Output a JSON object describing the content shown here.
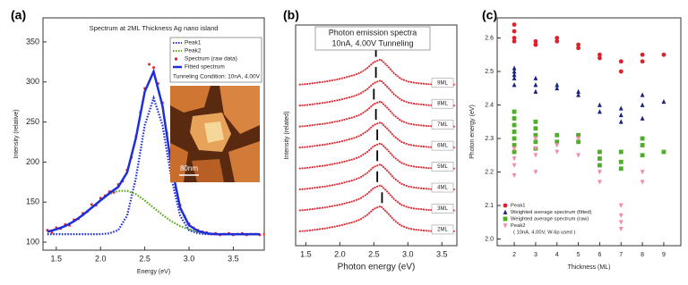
{
  "chart_data": [
    {
      "type": "line",
      "panel_label": "(a)",
      "title": "Spectrum at 2ML Thickness Ag nano island",
      "xlabel": "Energy (eV)",
      "ylabel": "Intensity (relative)",
      "xlim": [
        1.35,
        3.85
      ],
      "ylim": [
        90,
        380
      ],
      "xticks": [
        1.5,
        {
          "value": 2,
          "label": "2.0"
        },
        2.5,
        {
          "value": 3,
          "label": "3.0"
        },
        3.5
      ],
      "yticks": [
        100,
        150,
        200,
        250,
        300,
        350
      ],
      "annotation": "Tunneling Condition: 10nA, 4.00V",
      "inset_label": "80nm",
      "series": [
        {
          "name": "Peak1",
          "color": "#1f2fd8",
          "line_style": "dotted",
          "x": [
            1.4,
            1.5,
            1.6,
            1.7,
            1.8,
            1.9,
            2.0,
            2.1,
            2.2,
            2.3,
            2.4,
            2.5,
            2.6,
            2.7,
            2.8,
            2.9,
            3.0,
            3.1,
            3.2,
            3.3,
            3.4,
            3.5,
            3.6,
            3.7,
            3.8
          ],
          "values": [
            110,
            110,
            110,
            110,
            110,
            110,
            110,
            111,
            115,
            133,
            180,
            246,
            280,
            246,
            180,
            133,
            115,
            111,
            110,
            110,
            110,
            110,
            110,
            110,
            110
          ]
        },
        {
          "name": "Peak2",
          "color": "#5aa81e",
          "line_style": "dotted",
          "x": [
            1.4,
            1.5,
            1.6,
            1.7,
            1.8,
            1.9,
            2.0,
            2.1,
            2.2,
            2.3,
            2.4,
            2.5,
            2.6,
            2.7,
            2.8,
            2.9,
            3.0,
            3.1,
            3.2,
            3.3,
            3.4,
            3.5,
            3.6,
            3.7,
            3.8
          ],
          "values": [
            113,
            116,
            120,
            126,
            134,
            143,
            152,
            160,
            164,
            164,
            160,
            152,
            143,
            134,
            126,
            120,
            116,
            113,
            111,
            110,
            110,
            110,
            110,
            110,
            110
          ]
        },
        {
          "name": "Spectrum (raw data)",
          "color": "#e0202a",
          "line_style": "markers",
          "x": [
            1.4,
            1.45,
            1.5,
            1.55,
            1.6,
            1.65,
            1.7,
            1.75,
            1.8,
            1.85,
            1.9,
            1.95,
            2.0,
            2.05,
            2.1,
            2.15,
            2.2,
            2.25,
            2.3,
            2.35,
            2.4,
            2.45,
            2.5,
            2.55,
            2.6,
            2.65,
            2.7,
            2.75,
            2.8,
            2.85,
            2.9,
            2.95,
            3.0,
            3.05,
            3.1,
            3.15,
            3.2,
            3.25,
            3.3,
            3.35,
            3.4,
            3.45,
            3.5,
            3.55,
            3.6,
            3.65,
            3.7,
            3.75,
            3.8,
            3.85
          ],
          "values": [
            115,
            112,
            118,
            117,
            122,
            121,
            128,
            129,
            136,
            138,
            147,
            146,
            155,
            158,
            163,
            162,
            172,
            176,
            190,
            206,
            232,
            262,
            292,
            322,
            318,
            298,
            274,
            236,
            198,
            168,
            146,
            132,
            123,
            118,
            115,
            113,
            112,
            110,
            111,
            109,
            110,
            111,
            109,
            110,
            111,
            109,
            110,
            110,
            109,
            110
          ]
        },
        {
          "name": "Fitted spectrum",
          "color": "#1f2fd8",
          "line_style": "solid",
          "x": [
            1.4,
            1.5,
            1.6,
            1.7,
            1.8,
            1.9,
            2.0,
            2.1,
            2.2,
            2.3,
            2.4,
            2.5,
            2.6,
            2.7,
            2.8,
            2.9,
            3.0,
            3.1,
            3.2,
            3.3,
            3.4,
            3.5,
            3.6,
            3.7,
            3.8
          ],
          "values": [
            113,
            116,
            120,
            126,
            134,
            143,
            152,
            161,
            169,
            187,
            230,
            288,
            313,
            270,
            196,
            143,
            121,
            114,
            111,
            110,
            110,
            110,
            110,
            110,
            110
          ]
        }
      ]
    },
    {
      "type": "line",
      "panel_label": "(b)",
      "title": "Photon emission spectra",
      "subtitle": "10nA, 4.00V Tunneling",
      "xlabel": "Photon energy (eV)",
      "ylabel": "Intensity (related)",
      "xlim": [
        1.35,
        3.72
      ],
      "ylim": [
        0,
        10
      ],
      "xticks": [
        1.5,
        {
          "value": 2,
          "label": "2.0"
        },
        2.5,
        {
          "value": 3,
          "label": "3.0"
        },
        3.5
      ],
      "x": [
        1.4,
        1.5,
        1.6,
        1.7,
        1.8,
        1.9,
        2.0,
        2.1,
        2.2,
        2.3,
        2.4,
        2.5,
        2.6,
        2.7,
        2.8,
        2.9,
        3.0,
        3.1,
        3.2,
        3.3,
        3.4,
        3.5,
        3.6,
        3.7
      ],
      "series": [
        {
          "name": "9ML",
          "color": "#e0202a",
          "marker": 2.53,
          "values": [
            7.3,
            7.32,
            7.36,
            7.4,
            7.44,
            7.5,
            7.56,
            7.64,
            7.72,
            7.84,
            8.04,
            8.32,
            8.44,
            8.14,
            7.8,
            7.56,
            7.44,
            7.38,
            7.35,
            7.32,
            7.31,
            7.3,
            7.3,
            7.3
          ]
        },
        {
          "name": "8ML",
          "color": "#e0202a",
          "marker": 2.53,
          "values": [
            6.35,
            6.37,
            6.41,
            6.45,
            6.49,
            6.55,
            6.61,
            6.69,
            6.77,
            6.89,
            7.09,
            7.37,
            7.49,
            7.19,
            6.85,
            6.61,
            6.49,
            6.43,
            6.4,
            6.37,
            6.36,
            6.35,
            6.35,
            6.35
          ]
        },
        {
          "name": "7ML",
          "color": "#e0202a",
          "marker": 2.5,
          "values": [
            5.4,
            5.42,
            5.46,
            5.5,
            5.54,
            5.6,
            5.66,
            5.74,
            5.82,
            5.94,
            6.14,
            6.42,
            6.54,
            6.24,
            5.9,
            5.66,
            5.54,
            5.48,
            5.45,
            5.42,
            5.41,
            5.4,
            5.4,
            5.4
          ]
        },
        {
          "name": "6ML",
          "color": "#e0202a",
          "marker": 2.53,
          "values": [
            4.45,
            4.47,
            4.51,
            4.55,
            4.59,
            4.65,
            4.71,
            4.79,
            4.87,
            4.99,
            5.19,
            5.47,
            5.59,
            5.29,
            4.95,
            4.71,
            4.59,
            4.53,
            4.5,
            4.47,
            4.46,
            4.45,
            4.45,
            4.45
          ]
        },
        {
          "name": "5ML",
          "color": "#e0202a",
          "marker": 2.55,
          "values": [
            3.5,
            3.52,
            3.56,
            3.6,
            3.64,
            3.7,
            3.76,
            3.84,
            3.92,
            4.04,
            4.24,
            4.52,
            4.64,
            4.34,
            4,
            3.76,
            3.64,
            3.58,
            3.55,
            3.52,
            3.51,
            3.5,
            3.5,
            3.5
          ]
        },
        {
          "name": "4ML",
          "color": "#e0202a",
          "marker": 2.55,
          "values": [
            2.55,
            2.57,
            2.61,
            2.65,
            2.69,
            2.75,
            2.81,
            2.89,
            2.97,
            3.09,
            3.29,
            3.57,
            3.69,
            3.39,
            3.05,
            2.81,
            2.69,
            2.63,
            2.6,
            2.57,
            2.56,
            2.55,
            2.55,
            2.55
          ]
        },
        {
          "name": "3ML",
          "color": "#e0202a",
          "marker": 2.55,
          "values": [
            1.6,
            1.62,
            1.66,
            1.7,
            1.74,
            1.8,
            1.86,
            1.94,
            2.02,
            2.14,
            2.34,
            2.62,
            2.74,
            2.44,
            2.1,
            1.86,
            1.74,
            1.68,
            1.65,
            1.62,
            1.61,
            1.6,
            1.6,
            1.6
          ]
        },
        {
          "name": "2ML",
          "color": "#e0202a",
          "marker": 2.62,
          "values": [
            0.65,
            0.67,
            0.71,
            0.75,
            0.79,
            0.85,
            0.91,
            0.99,
            1.07,
            1.19,
            1.39,
            1.67,
            1.79,
            1.49,
            1.15,
            0.91,
            0.79,
            0.73,
            0.7,
            0.67,
            0.66,
            0.65,
            0.65,
            0.65
          ]
        }
      ]
    },
    {
      "type": "scatter",
      "panel_label": "(c)",
      "xlabel": "Thickness (ML)",
      "ylabel": "Photon energy (eV)",
      "xlim": [
        1.2,
        9.8
      ],
      "ylim": [
        1.98,
        2.66
      ],
      "xticks": [
        2,
        3,
        4,
        5,
        6,
        7,
        8,
        9
      ],
      "yticks": [
        {
          "value": 2,
          "label": "2.0"
        },
        2.1,
        2.2,
        2.3,
        2.4,
        2.5,
        2.6
      ],
      "legend_note": "( 10nA, 4.00V, W-tip used )",
      "series": [
        {
          "name": "Peak1",
          "color": "#e0202a",
          "marker": "circle",
          "x": [
            2,
            2,
            2,
            2,
            3,
            3,
            3,
            4,
            4,
            5,
            5,
            6,
            6,
            7,
            7,
            8,
            8,
            9
          ],
          "values": [
            2.64,
            2.62,
            2.6,
            2.59,
            2.59,
            2.58,
            2.58,
            2.6,
            2.59,
            2.58,
            2.57,
            2.55,
            2.54,
            2.53,
            2.5,
            2.55,
            2.53,
            2.55
          ]
        },
        {
          "name": "Weighted average spectrum (fitted)",
          "color": "#1a237e",
          "marker": "triangle",
          "x": [
            2,
            2,
            2,
            2,
            2,
            3,
            3,
            3,
            4,
            4,
            5,
            5,
            6,
            6,
            7,
            7,
            7,
            8,
            8,
            8,
            9
          ],
          "values": [
            2.51,
            2.5,
            2.49,
            2.48,
            2.46,
            2.48,
            2.46,
            2.44,
            2.46,
            2.45,
            2.44,
            2.43,
            2.4,
            2.38,
            2.39,
            2.37,
            2.35,
            2.43,
            2.4,
            2.36,
            2.41
          ]
        },
        {
          "name": "Weighted average spectrum (raw)",
          "color": "#4caf24",
          "marker": "square",
          "x": [
            2,
            2,
            2,
            2,
            2,
            2,
            2,
            3,
            3,
            3,
            3,
            3,
            4,
            4,
            5,
            5,
            6,
            6,
            6,
            7,
            7,
            7,
            8,
            8,
            8,
            9
          ],
          "values": [
            2.38,
            2.36,
            2.34,
            2.32,
            2.3,
            2.28,
            2.26,
            2.35,
            2.33,
            2.31,
            2.29,
            2.27,
            2.31,
            2.29,
            2.31,
            2.29,
            2.26,
            2.24,
            2.22,
            2.26,
            2.23,
            2.21,
            2.3,
            2.28,
            2.25,
            2.26
          ]
        },
        {
          "name": "Peak2",
          "color": "#f08ca8",
          "marker": "triangle-down",
          "x": [
            2,
            2,
            2,
            2,
            3,
            3,
            3,
            3,
            4,
            4,
            5,
            5,
            6,
            6,
            7,
            7,
            7,
            7,
            8,
            8
          ],
          "values": [
            2.27,
            2.24,
            2.22,
            2.19,
            2.3,
            2.27,
            2.25,
            2.2,
            2.28,
            2.26,
            2.3,
            2.25,
            2.2,
            2.17,
            2.1,
            2.07,
            2.05,
            2.03,
            2.2,
            2.17
          ]
        }
      ]
    }
  ]
}
